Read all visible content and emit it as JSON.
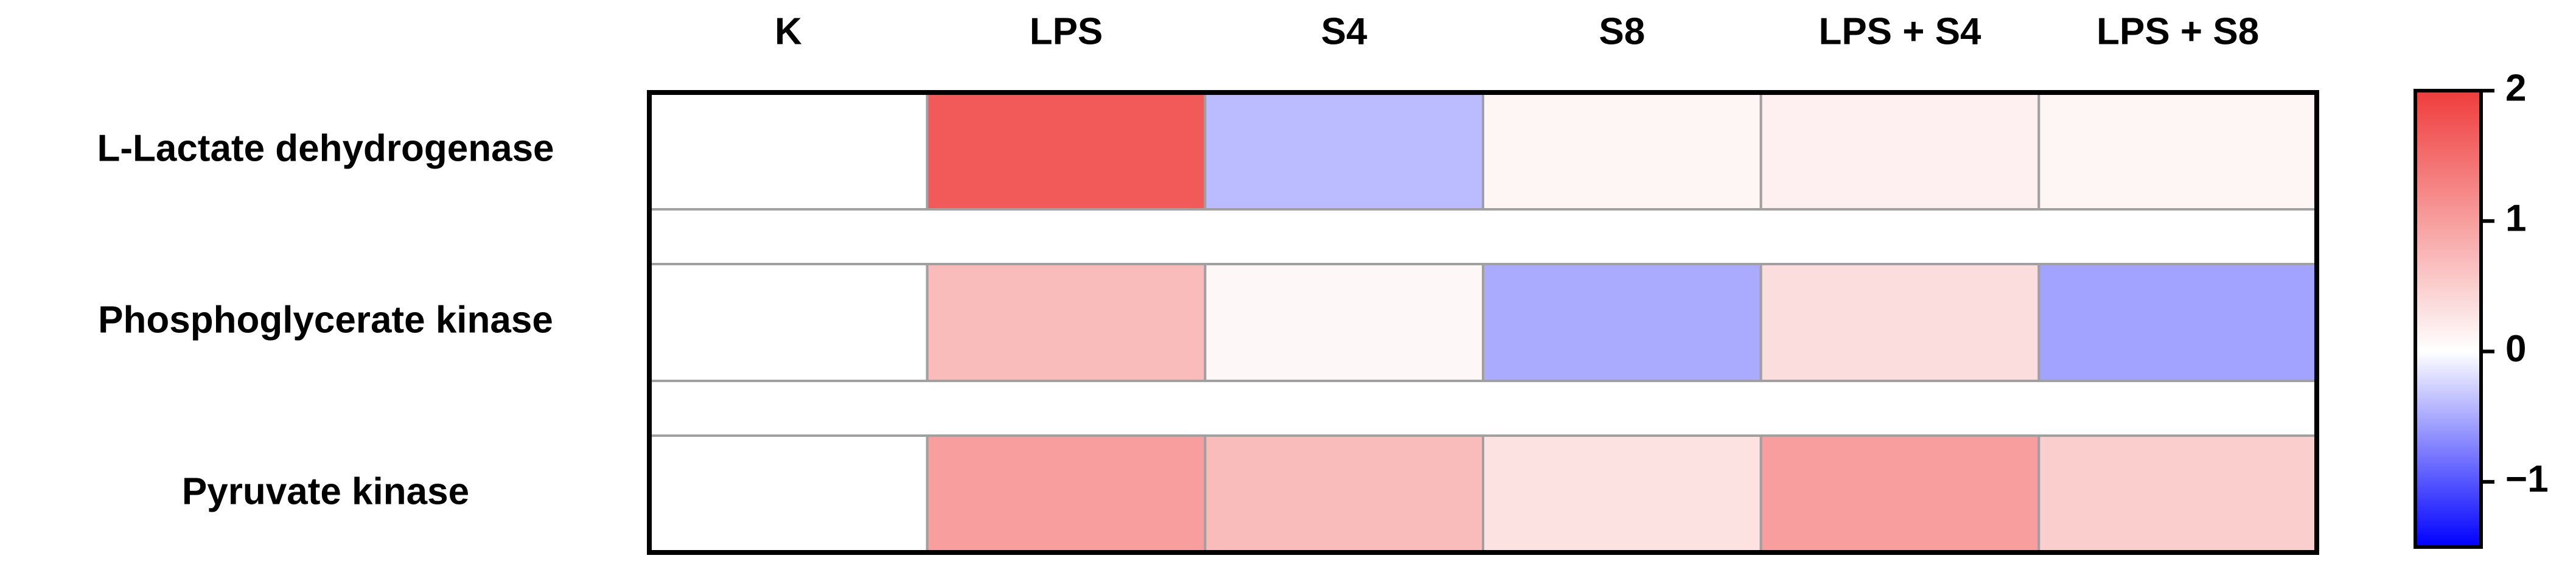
{
  "chart_data": {
    "type": "heatmap",
    "columns": [
      "K",
      "LPS",
      "S4",
      "S8",
      "LPS + S4",
      "LPS + S8"
    ],
    "rows": [
      "L-Lactate dehydrogenase",
      "Phosphoglycerate kinase",
      "Pyruvate kinase"
    ],
    "values": [
      [
        0,
        1.7,
        -0.4,
        0.1,
        0.15,
        0.1
      ],
      [
        0,
        0.7,
        0.08,
        -0.5,
        0.35,
        -0.55
      ],
      [
        0,
        1.0,
        0.7,
        0.3,
        1.0,
        0.5
      ]
    ],
    "colormap": {
      "low": "#0000ff",
      "mid": "#ffffff",
      "high": "#f03c3c"
    },
    "clim": [
      -1.5,
      2
    ],
    "cticks": [
      2,
      1,
      0,
      {
        "value": -1,
        "label": "−1"
      }
    ]
  }
}
